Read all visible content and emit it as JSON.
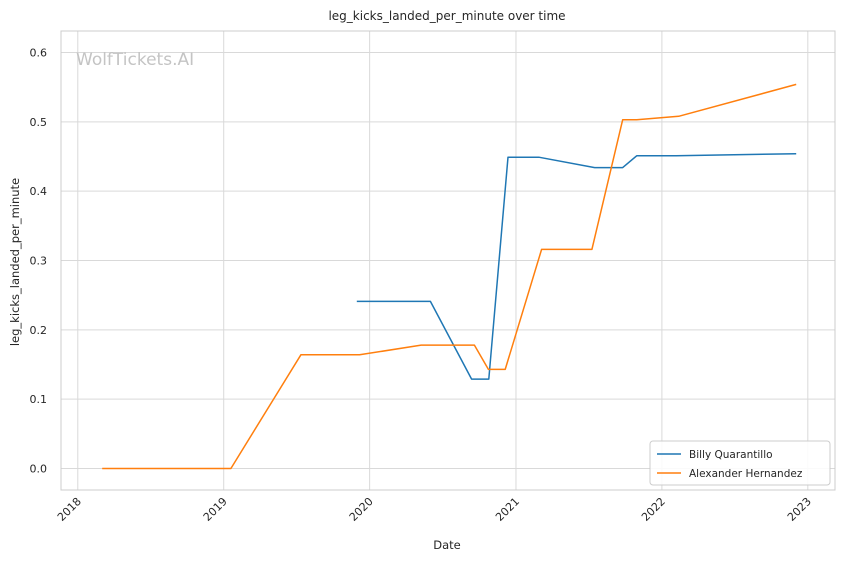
{
  "chart_data": {
    "type": "line",
    "title": "leg_kicks_landed_per_minute over time",
    "xlabel": "Date",
    "ylabel": "leg_kicks_landed_per_minute",
    "xlim": [
      "2017-11-20",
      "2023-03-10"
    ],
    "ylim": [
      -0.031,
      0.631
    ],
    "x_ticks": [
      "2018",
      "2019",
      "2020",
      "2021",
      "2022",
      "2023"
    ],
    "y_ticks": [
      "0.0",
      "0.1",
      "0.2",
      "0.3",
      "0.4",
      "0.5",
      "0.6"
    ],
    "grid": true,
    "legend_position": "bottom-right",
    "watermark": "WolfTickets.AI",
    "series": [
      {
        "name": "Billy Quarantillo",
        "color": "#1f77b4",
        "points": [
          [
            "2019-11-30",
            0.241
          ],
          [
            "2020-06-01",
            0.241
          ],
          [
            "2020-09-12",
            0.129
          ],
          [
            "2020-10-25",
            0.129
          ],
          [
            "2020-12-12",
            0.449
          ],
          [
            "2021-02-27",
            0.449
          ],
          [
            "2021-07-17",
            0.434
          ],
          [
            "2021-09-25",
            0.434
          ],
          [
            "2021-10-30",
            0.451
          ],
          [
            "2022-02-05",
            0.451
          ],
          [
            "2022-12-03",
            0.454
          ]
        ]
      },
      {
        "name": "Alexander Hernandez",
        "color": "#ff7f0e",
        "points": [
          [
            "2018-03-03",
            0.0
          ],
          [
            "2019-01-19",
            0.0
          ],
          [
            "2019-07-13",
            0.164
          ],
          [
            "2019-12-07",
            0.164
          ],
          [
            "2020-05-09",
            0.178
          ],
          [
            "2020-09-19",
            0.178
          ],
          [
            "2020-10-24",
            0.143
          ],
          [
            "2020-12-05",
            0.143
          ],
          [
            "2021-03-06",
            0.316
          ],
          [
            "2021-07-10",
            0.316
          ],
          [
            "2021-09-25",
            0.503
          ],
          [
            "2021-10-30",
            0.503
          ],
          [
            "2022-02-12",
            0.508
          ],
          [
            "2022-12-03",
            0.554
          ]
        ]
      }
    ]
  }
}
